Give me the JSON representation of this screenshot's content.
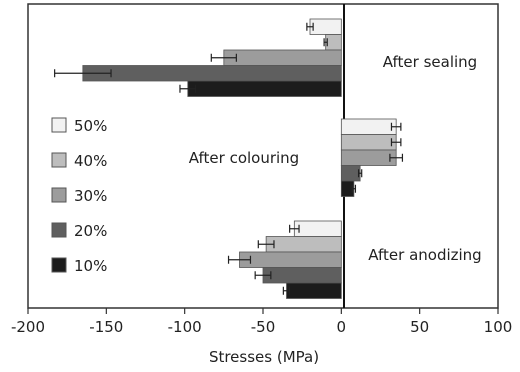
{
  "chart_data": {
    "type": "bar",
    "orientation": "horizontal",
    "xlabel": "Stresses (MPa)",
    "xlim": [
      -200,
      100
    ],
    "xticks": [
      "-200",
      "-150",
      "-100",
      "-50",
      "0",
      "50",
      "100"
    ],
    "tick_values": [
      -200,
      -150,
      -100,
      -50,
      0,
      50,
      100
    ],
    "grid": false,
    "legend_position": "left",
    "groups": [
      {
        "label": "After sealing",
        "values": {
          "50%": -20,
          "40%": -10,
          "30%": -75,
          "20%": -165,
          "10%": -98
        },
        "errors": {
          "50%": 2,
          "40%": 1,
          "30%": 8,
          "20%": 18,
          "10%": 5
        }
      },
      {
        "label": "After colouring",
        "values": {
          "50%": 35,
          "40%": 35,
          "30%": 35,
          "20%": 12,
          "10%": 8
        },
        "errors": {
          "50%": 3,
          "40%": 3,
          "30%": 4,
          "20%": 1,
          "10%": 1
        }
      },
      {
        "label": "After anodizing",
        "values": {
          "50%": -30,
          "40%": -48,
          "30%": -65,
          "20%": -50,
          "10%": -35
        },
        "errors": {
          "50%": 3,
          "40%": 5,
          "30%": 7,
          "20%": 5,
          "10%": 2
        }
      }
    ],
    "series": [
      {
        "name": "50%",
        "color": "#f2f2f2"
      },
      {
        "name": "40%",
        "color": "#bdbdbd"
      },
      {
        "name": "30%",
        "color": "#9c9c9c"
      },
      {
        "name": "20%",
        "color": "#5f5f5f"
      },
      {
        "name": "10%",
        "color": "#1c1c1c"
      }
    ]
  }
}
